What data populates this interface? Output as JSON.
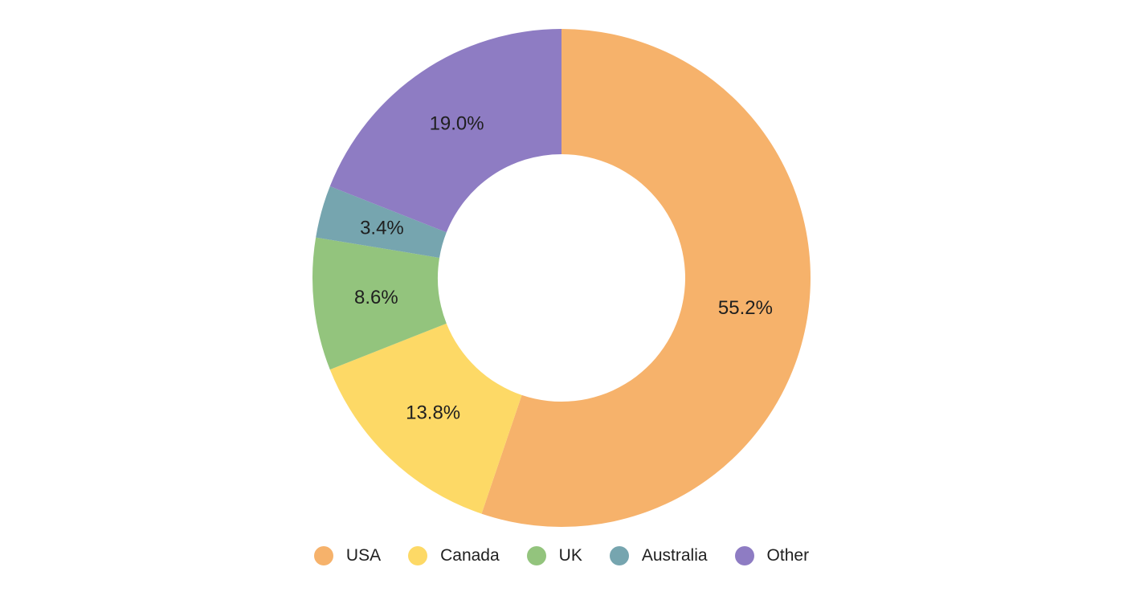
{
  "chart_data": {
    "type": "pie",
    "variant": "donut",
    "categories": [
      "USA",
      "Canada",
      "UK",
      "Australia",
      "Other"
    ],
    "values": [
      55.2,
      13.8,
      8.6,
      3.4,
      19.0
    ],
    "value_labels": [
      "55.2%",
      "13.8%",
      "8.6%",
      "3.4%",
      "19.0%"
    ],
    "colors": [
      "#F6B26B",
      "#FDD966",
      "#93C47D",
      "#76A5AF",
      "#8E7CC3"
    ],
    "legend_position": "bottom",
    "title": ""
  },
  "legend": {
    "items": [
      {
        "label": "USA",
        "color": "#F6B26B"
      },
      {
        "label": "Canada",
        "color": "#FDD966"
      },
      {
        "label": "UK",
        "color": "#93C47D"
      },
      {
        "label": "Australia",
        "color": "#76A5AF"
      },
      {
        "label": "Other",
        "color": "#8E7CC3"
      }
    ]
  }
}
